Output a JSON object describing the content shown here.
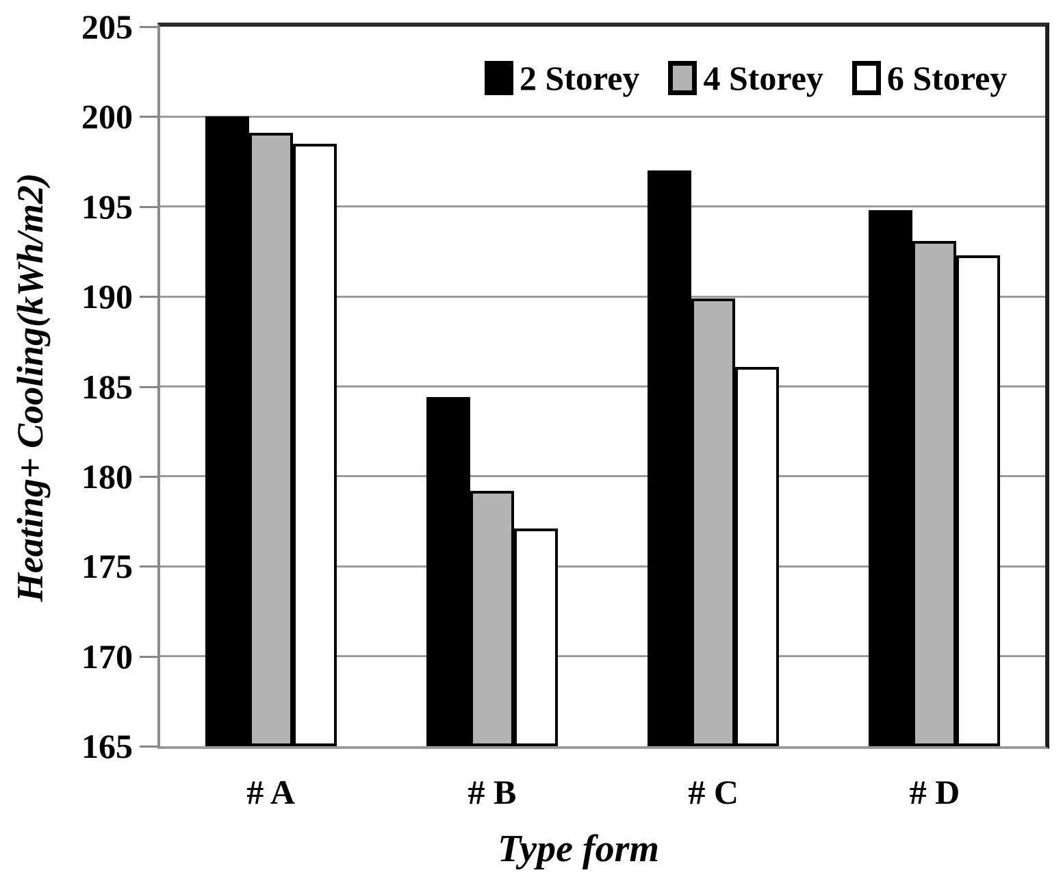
{
  "chart_data": {
    "type": "bar",
    "title": "",
    "categories": [
      "# A",
      "# B",
      "# C",
      "# D"
    ],
    "series": [
      {
        "name": "2 Storey",
        "fill": "#000000",
        "values": [
          200.0,
          184.4,
          197.0,
          194.8
        ]
      },
      {
        "name": "4 Storey",
        "fill": "#b3b3b3",
        "values": [
          199.1,
          179.2,
          189.9,
          193.1
        ]
      },
      {
        "name": "6 Storey",
        "fill": "#ffffff",
        "values": [
          198.5,
          177.1,
          186.1,
          192.3
        ]
      }
    ],
    "xlabel": "Type form",
    "ylabel": "Heating+ Cooling(kWh/m2)",
    "ylim": [
      165,
      205
    ],
    "yticks": [
      165,
      170,
      175,
      180,
      185,
      190,
      195,
      200,
      205
    ],
    "grid": "horizontal",
    "legend_position": "top-right-inside",
    "bar_outline": "#000000"
  },
  "colors": {
    "background": "#ffffff",
    "gridline": "#9a9a9a",
    "axis_line": "#8c8c8c",
    "plot_border": "#1f1f1f",
    "text": "#000000",
    "gray_series": "#b3b3b3"
  }
}
